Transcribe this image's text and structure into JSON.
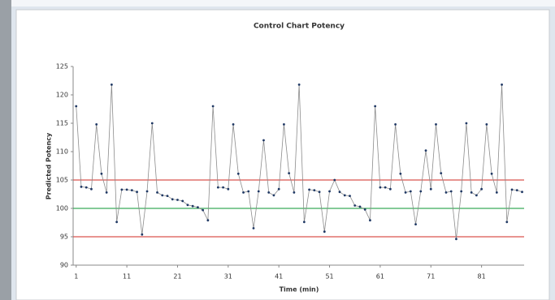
{
  "chart_data": {
    "type": "line",
    "title": "Control Chart Potency",
    "x_label": "Time (min)",
    "y_label": "Predicted Potency",
    "x": [
      1,
      2,
      3,
      4,
      5,
      6,
      7,
      8,
      9,
      10,
      11,
      12,
      13,
      14,
      15,
      16,
      17,
      18,
      19,
      20,
      21,
      22,
      23,
      24,
      25,
      26,
      27,
      28,
      29,
      30,
      31,
      32,
      33,
      34,
      35,
      36,
      37,
      38,
      39,
      40,
      41,
      42,
      43,
      44,
      45,
      46,
      47,
      48,
      49,
      50,
      51,
      52,
      53,
      54,
      55,
      56,
      57,
      58,
      59,
      60,
      61,
      62,
      63,
      64,
      65,
      66,
      67,
      68,
      69,
      70,
      71,
      72,
      73,
      74,
      75,
      76,
      77,
      78,
      79,
      80,
      81,
      82,
      83,
      84,
      85,
      86,
      87,
      88,
      89
    ],
    "series": [
      {
        "color": "#8c8c8c",
        "marker_color": "#1f3864",
        "values": [
          118,
          103.8,
          103.7,
          103.4,
          114.8,
          106.1,
          102.8,
          121.8,
          97.6,
          103.3,
          103.3,
          103.2,
          102.9,
          95.4,
          103,
          115,
          102.8,
          102.3,
          102.2,
          101.6,
          101.5,
          101.3,
          100.6,
          100.4,
          100.2,
          99.7,
          97.9,
          118,
          103.7,
          103.7,
          103.4,
          114.8,
          106.1,
          102.8,
          103,
          96.5,
          103,
          112,
          102.8,
          102.3,
          103.4,
          114.8,
          106.2,
          102.8,
          121.8,
          97.6,
          103.3,
          103.2,
          102.9,
          95.9,
          103,
          105,
          102.9,
          102.3,
          102.2,
          100.5,
          100.3,
          99.8,
          97.9,
          118,
          103.7,
          103.7,
          103.4,
          114.8,
          106.1,
          102.8,
          103,
          97.2,
          103,
          110.2,
          103.4,
          114.8,
          106.2,
          102.8,
          103,
          94.6,
          103,
          115,
          102.8,
          102.3,
          103.4,
          114.8,
          106.1,
          102.8,
          121.8,
          97.6,
          103.3,
          103.2,
          102.9
        ]
      }
    ],
    "control_lines": [
      {
        "value": 105,
        "color": "#d9534f"
      },
      {
        "value": 100,
        "color": "#3aaa5a"
      },
      {
        "value": 95,
        "color": "#d9534f"
      }
    ],
    "xlim": [
      0.4,
      89.4
    ],
    "xticks": [
      1,
      11,
      21,
      31,
      41,
      51,
      61,
      71,
      81
    ],
    "ylim": [
      90,
      125
    ],
    "yticks": [
      90,
      95,
      100,
      105,
      110,
      115,
      120,
      125
    ],
    "grid": false
  }
}
